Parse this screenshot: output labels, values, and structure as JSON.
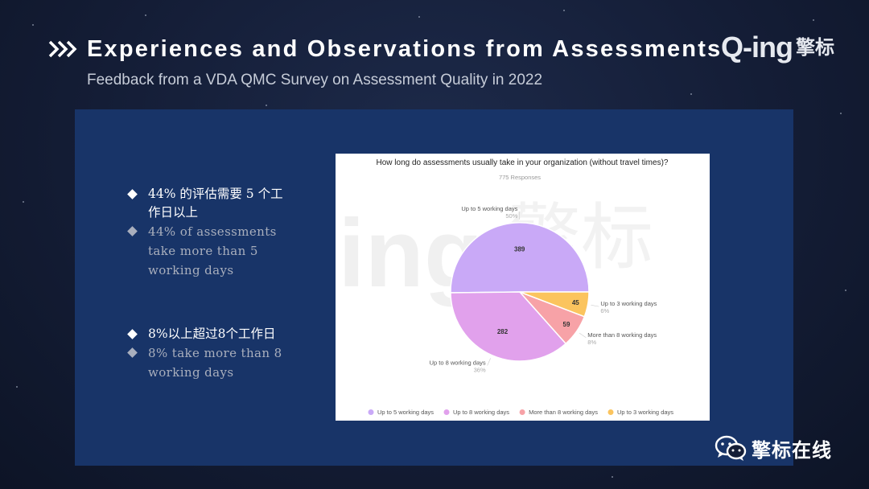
{
  "header": {
    "title": "Experiences and Observations from Assessments",
    "subtitle": "Feedback from a VDA QMC Survey on Assessment Quality in 2022"
  },
  "logo": {
    "latin": "Q-ing",
    "chinese": "擎标"
  },
  "bullets": [
    {
      "cn": "44% 的评估需要 5 个工作日以上",
      "en": "44% of assessments take more than 5 working days"
    },
    {
      "cn": "8%以上超过8个工作日",
      "en": "8% take more than 8 working days"
    }
  ],
  "footer": {
    "text": "擎标在线",
    "icon": "wechat-icon"
  },
  "colors": {
    "panel": "#183468",
    "slice_1": "#c9a9f7",
    "slice_2": "#e1a1ec",
    "slice_3": "#f7a2a7",
    "slice_4": "#fbc45e"
  },
  "chart_data": {
    "type": "pie",
    "title": "How long do assessments usually take in your organization (without travel times)?",
    "subtitle": "775 Responses",
    "legend_position": "bottom",
    "slices": [
      {
        "label": "Up to 5 working days",
        "value": 389,
        "percent": "50%",
        "color": "#c9a9f7"
      },
      {
        "label": "Up to 8 working days",
        "value": 282,
        "percent": "36%",
        "color": "#e1a1ec"
      },
      {
        "label": "More than 8 working days",
        "value": 59,
        "percent": "8%",
        "color": "#f7a2a7"
      },
      {
        "label": "Up to 3 working days",
        "value": 45,
        "percent": "6%",
        "color": "#fbc45e"
      }
    ]
  }
}
